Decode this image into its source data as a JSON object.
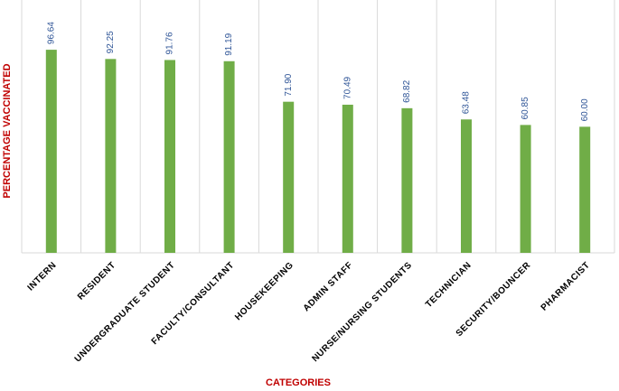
{
  "chart_data": {
    "type": "bar",
    "x_label": "CATEGORIES",
    "y_label": "PERCENTAGE VACCINATED",
    "categories": [
      "INTERN",
      "RESIDENT",
      "UNDERGRADUATE STUDENT",
      "FACULTY/CONSULTANT",
      "HOUSEKEEPING",
      "ADMIN STAFF",
      "NURSE/NURSING STUDENTS",
      "TECHNICIAN",
      "SECURITY/BOUNCER",
      "PHARMACIST"
    ],
    "values": [
      96.64,
      92.25,
      91.76,
      91.19,
      71.9,
      70.49,
      68.82,
      63.48,
      60.85,
      60
    ],
    "value_labels": [
      "96.64",
      "92.25",
      "91.76",
      "91.19",
      "71.90",
      "70.49",
      "68.82",
      "63.48",
      "60.85",
      "60.00"
    ],
    "color": "#70ad47",
    "ylim": [
      0,
      110
    ]
  }
}
